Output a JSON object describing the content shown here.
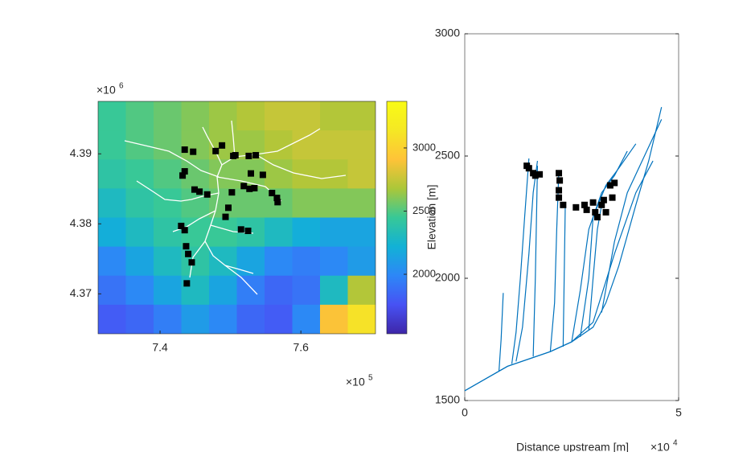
{
  "chart_data": [
    {
      "type": "map",
      "xlim": [
        7.312,
        7.706
      ],
      "xticks": [
        7.4,
        7.6
      ],
      "ylim": [
        4.3643,
        4.3975
      ],
      "yticks": [
        4.37,
        4.38,
        4.39
      ],
      "x_multiplier": {
        "base": "×10",
        "exponent": "5"
      },
      "y_multiplier": {
        "base": "×10",
        "exponent": "6"
      },
      "clim": [
        1529,
        3369
      ],
      "cticks": [
        2000,
        2500,
        3000
      ],
      "elevation_grid": [
        [
          2450,
          2500,
          2550,
          2600,
          2650,
          2700,
          2750,
          2750,
          2700,
          2700
        ],
        [
          2450,
          2500,
          2550,
          2600,
          2650,
          2650,
          2700,
          2750,
          2750,
          2750
        ],
        [
          2400,
          2450,
          2500,
          2550,
          2600,
          2600,
          2650,
          2700,
          2700,
          2750
        ],
        [
          2300,
          2400,
          2450,
          2500,
          2550,
          2550,
          2550,
          2600,
          2600,
          2600
        ],
        [
          2200,
          2300,
          2400,
          2450,
          2450,
          2400,
          2300,
          2200,
          2150,
          2150
        ],
        [
          2000,
          2150,
          2300,
          2400,
          2300,
          2150,
          2000,
          1950,
          2000,
          2100
        ],
        [
          1900,
          2000,
          2150,
          2300,
          2150,
          1950,
          1850,
          1900,
          2300,
          2700
        ],
        [
          1800,
          1850,
          1950,
          2100,
          2000,
          1850,
          1800,
          2000,
          2900,
          3100
        ]
      ],
      "knickpoints": {
        "color": "#000000",
        "x": [
          7.435,
          7.447,
          7.479,
          7.488,
          7.504,
          7.507,
          7.526,
          7.536,
          7.432,
          7.435,
          7.529,
          7.546,
          7.449,
          7.456,
          7.467,
          7.502,
          7.519,
          7.527,
          7.534,
          7.559,
          7.566,
          7.567,
          7.497,
          7.493,
          7.43,
          7.435,
          7.515,
          7.525,
          7.437,
          7.44,
          7.445,
          7.438
        ],
        "y": [
          4.3906,
          4.3903,
          4.3904,
          4.3912,
          4.3897,
          4.3898,
          4.3897,
          4.3898,
          4.3869,
          4.3875,
          4.3872,
          4.387,
          4.3849,
          4.3846,
          4.3842,
          4.3845,
          4.3854,
          4.385,
          4.3851,
          4.3844,
          4.3837,
          4.3831,
          4.3823,
          4.381,
          4.3797,
          4.3791,
          4.3792,
          4.379,
          4.3768,
          4.3757,
          4.3745,
          4.3715
        ]
      }
    },
    {
      "type": "line",
      "ylabel": "Elevation [m]",
      "xlabel": "Distance upstream [m]",
      "xlim": [
        0,
        5
      ],
      "xticks": [
        0,
        5
      ],
      "ylim": [
        1500,
        3000
      ],
      "yticks": [
        1500,
        2000,
        2500,
        3000
      ],
      "x_multiplier": {
        "base": "×10",
        "exponent": "4"
      },
      "color": "#0072bd",
      "series": [
        {
          "x": [
            0,
            0.5,
            1,
            1.5,
            2,
            2.5,
            3,
            3.3,
            3.6,
            4,
            4.3,
            4.6
          ],
          "y": [
            1540,
            1590,
            1640,
            1670,
            1700,
            1740,
            1800,
            1900,
            2050,
            2300,
            2480,
            2700
          ]
        },
        {
          "x": [
            0,
            0.5,
            1,
            1.5,
            2,
            2.5,
            3,
            3.5,
            4,
            4.4
          ],
          "y": [
            1540,
            1590,
            1640,
            1670,
            1700,
            1740,
            1820,
            2100,
            2350,
            2480
          ]
        },
        {
          "x": [
            0.8,
            0.85,
            0.9
          ],
          "y": [
            1620,
            1750,
            1940
          ]
        },
        {
          "x": [
            1.1,
            1.2,
            1.3,
            1.4,
            1.5
          ],
          "y": [
            1650,
            1780,
            2000,
            2250,
            2490
          ]
        },
        {
          "x": [
            1.2,
            1.35,
            1.5,
            1.6,
            1.7
          ],
          "y": [
            1660,
            1800,
            2100,
            2350,
            2480
          ]
        },
        {
          "x": [
            1.6,
            1.65,
            1.7
          ],
          "y": [
            1680,
            2000,
            2460
          ]
        },
        {
          "x": [
            2.0,
            2.1,
            2.15,
            2.2
          ],
          "y": [
            1700,
            1900,
            2200,
            2440
          ]
        },
        {
          "x": [
            2.3,
            2.32,
            2.35
          ],
          "y": [
            1720,
            1950,
            2300
          ]
        },
        {
          "x": [
            2.5,
            2.7,
            2.9,
            3.2,
            3.5,
            3.8
          ],
          "y": [
            1740,
            1950,
            2200,
            2350,
            2420,
            2520
          ]
        },
        {
          "x": [
            2.7,
            2.9,
            3.0,
            3.3,
            3.6,
            4.0
          ],
          "y": [
            1760,
            2000,
            2250,
            2380,
            2450,
            2550
          ]
        },
        {
          "x": [
            2.9,
            3.0,
            3.1,
            3.2
          ],
          "y": [
            1790,
            2000,
            2200,
            2300
          ]
        },
        {
          "x": [
            3.2,
            3.5,
            3.8,
            4.2,
            4.6
          ],
          "y": [
            1860,
            2150,
            2350,
            2500,
            2650
          ]
        }
      ],
      "knickpoints": {
        "color": "#000000",
        "x": [
          1.45,
          1.5,
          1.6,
          1.65,
          1.75,
          2.2,
          2.22,
          2.2,
          2.2,
          2.3,
          2.6,
          2.8,
          2.85,
          3.0,
          3.05,
          3.1,
          3.2,
          3.25,
          3.3,
          3.4,
          3.5,
          3.45
        ],
        "y": [
          2460,
          2450,
          2430,
          2420,
          2425,
          2430,
          2400,
          2360,
          2330,
          2300,
          2290,
          2300,
          2280,
          2310,
          2270,
          2250,
          2300,
          2320,
          2270,
          2380,
          2390,
          2330
        ]
      }
    }
  ]
}
